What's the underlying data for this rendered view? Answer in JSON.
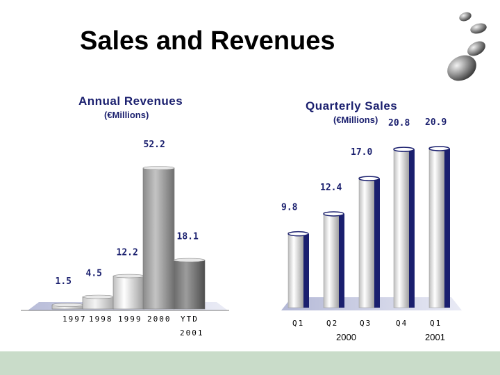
{
  "slide": {
    "title": "Sales and Revenues"
  },
  "colors": {
    "navy": "#1a1f6e",
    "footer": "#c9dcc9"
  },
  "chart_data": [
    {
      "type": "bar",
      "title": "Annual Revenues",
      "subtitle": "(€Millions)",
      "categories": [
        "1997",
        "1998",
        "1999",
        "2000",
        "YTD"
      ],
      "category_sublabels": [
        "",
        "",
        "",
        "",
        "2001"
      ],
      "values": [
        1.5,
        4.5,
        12.2,
        52.2,
        18.1
      ],
      "value_labels": [
        "1.5",
        "4.5",
        "12.2",
        "52.2",
        "18.1"
      ],
      "grid": false,
      "legend": "none"
    },
    {
      "type": "bar",
      "title": "Quarterly Sales",
      "subtitle": "(€Millions)",
      "categories": [
        "Q1",
        "Q2",
        "Q3",
        "Q4",
        "Q1"
      ],
      "group_labels": [
        "2000",
        "2001"
      ],
      "values": [
        9.8,
        12.4,
        17.0,
        20.8,
        20.9
      ],
      "value_labels": [
        "9.8",
        "12.4",
        "17.0",
        "20.8",
        "20.9"
      ],
      "grid": false,
      "legend": "none"
    }
  ]
}
